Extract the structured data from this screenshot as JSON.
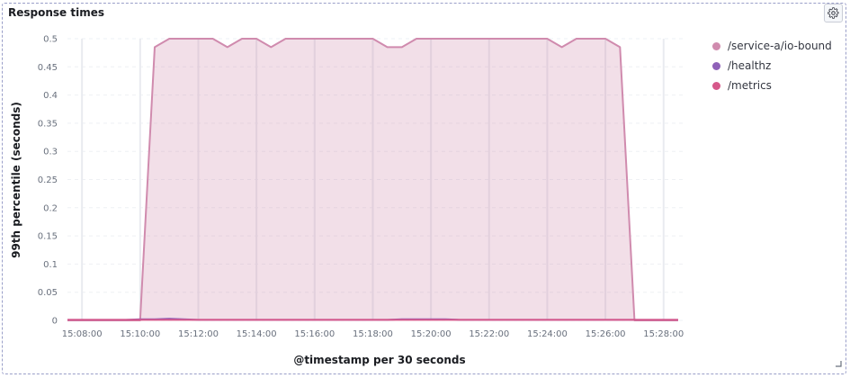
{
  "panel": {
    "title": "Response times"
  },
  "icons": {
    "settings": "gear-icon",
    "resize": "resize-handle-icon"
  },
  "legend": [
    {
      "label": "/service-a/io-bound",
      "color": "#d08bae"
    },
    {
      "label": "/healthz",
      "color": "#8f61b8"
    },
    {
      "label": "/metrics",
      "color": "#d6588a"
    }
  ],
  "chart_data": {
    "type": "area",
    "xlabel": "@timestamp per 30 seconds",
    "ylabel": "99th percentile (seconds)",
    "ylim": [
      0,
      0.5
    ],
    "y_ticks": [
      "0",
      "0.05",
      "0.1",
      "0.15",
      "0.2",
      "0.25",
      "0.3",
      "0.35",
      "0.4",
      "0.45",
      "0.5"
    ],
    "x_ticks": [
      "15:08:00",
      "15:10:00",
      "15:12:00",
      "15:14:00",
      "15:16:00",
      "15:18:00",
      "15:20:00",
      "15:22:00",
      "15:24:00",
      "15:26:00",
      "15:28:00"
    ],
    "grid": true,
    "legend_position": "right",
    "series": [
      {
        "name": "/service-a/io-bound",
        "color": "#d08bae",
        "x": [
          "15:07:30",
          "15:08:00",
          "15:08:30",
          "15:09:00",
          "15:09:30",
          "15:10:00",
          "15:10:30",
          "15:11:00",
          "15:11:30",
          "15:12:00",
          "15:12:30",
          "15:13:00",
          "15:13:30",
          "15:14:00",
          "15:14:30",
          "15:15:00",
          "15:15:30",
          "15:16:00",
          "15:16:30",
          "15:17:00",
          "15:17:30",
          "15:18:00",
          "15:18:30",
          "15:19:00",
          "15:19:30",
          "15:20:00",
          "15:20:30",
          "15:21:00",
          "15:21:30",
          "15:22:00",
          "15:22:30",
          "15:23:00",
          "15:23:30",
          "15:24:00",
          "15:24:30",
          "15:25:00",
          "15:25:30",
          "15:26:00",
          "15:26:30",
          "15:27:00",
          "15:27:30",
          "15:28:00",
          "15:28:30"
        ],
        "values": [
          0,
          0,
          0,
          0,
          0,
          0,
          0.485,
          0.5,
          0.5,
          0.5,
          0.5,
          0.485,
          0.5,
          0.5,
          0.485,
          0.5,
          0.5,
          0.5,
          0.5,
          0.5,
          0.5,
          0.5,
          0.485,
          0.485,
          0.5,
          0.5,
          0.5,
          0.5,
          0.5,
          0.5,
          0.5,
          0.5,
          0.5,
          0.5,
          0.485,
          0.5,
          0.5,
          0.5,
          0.485,
          0,
          0,
          0,
          0
        ]
      },
      {
        "name": "/healthz",
        "color": "#8f61b8",
        "x": [
          "15:07:30",
          "15:08:00",
          "15:08:30",
          "15:09:00",
          "15:09:30",
          "15:10:00",
          "15:10:30",
          "15:11:00",
          "15:11:30",
          "15:12:00",
          "15:12:30",
          "15:13:00",
          "15:13:30",
          "15:14:00",
          "15:14:30",
          "15:15:00",
          "15:15:30",
          "15:16:00",
          "15:16:30",
          "15:17:00",
          "15:17:30",
          "15:18:00",
          "15:18:30",
          "15:19:00",
          "15:19:30",
          "15:20:00",
          "15:20:30",
          "15:21:00",
          "15:21:30",
          "15:22:00",
          "15:22:30",
          "15:23:00",
          "15:23:30",
          "15:24:00",
          "15:24:30",
          "15:25:00",
          "15:25:30",
          "15:26:00",
          "15:26:30",
          "15:27:00",
          "15:27:30",
          "15:28:00",
          "15:28:30"
        ],
        "values": [
          0.001,
          0.001,
          0.001,
          0.001,
          0.001,
          0.002,
          0.002,
          0.003,
          0.002,
          0.001,
          0.001,
          0.001,
          0.001,
          0.001,
          0.001,
          0.001,
          0.001,
          0.001,
          0.001,
          0.001,
          0.001,
          0.001,
          0.001,
          0.002,
          0.002,
          0.002,
          0.002,
          0.001,
          0.001,
          0.001,
          0.001,
          0.001,
          0.001,
          0.001,
          0.001,
          0.001,
          0.001,
          0.001,
          0.001,
          0.001,
          0.001,
          0.001,
          0.001
        ]
      },
      {
        "name": "/metrics",
        "color": "#d6588a",
        "x": [
          "15:07:30",
          "15:08:00",
          "15:08:30",
          "15:09:00",
          "15:09:30",
          "15:10:00",
          "15:10:30",
          "15:11:00",
          "15:11:30",
          "15:12:00",
          "15:12:30",
          "15:13:00",
          "15:13:30",
          "15:14:00",
          "15:14:30",
          "15:15:00",
          "15:15:30",
          "15:16:00",
          "15:16:30",
          "15:17:00",
          "15:17:30",
          "15:18:00",
          "15:18:30",
          "15:19:00",
          "15:19:30",
          "15:20:00",
          "15:20:30",
          "15:21:00",
          "15:21:30",
          "15:22:00",
          "15:22:30",
          "15:23:00",
          "15:23:30",
          "15:24:00",
          "15:24:30",
          "15:25:00",
          "15:25:30",
          "15:26:00",
          "15:26:30",
          "15:27:00",
          "15:27:30",
          "15:28:00",
          "15:28:30"
        ],
        "values": [
          0.001,
          0.001,
          0.001,
          0.001,
          0.001,
          0.001,
          0.001,
          0.001,
          0.001,
          0.001,
          0.001,
          0.001,
          0.001,
          0.001,
          0.001,
          0.001,
          0.001,
          0.001,
          0.001,
          0.001,
          0.001,
          0.001,
          0.001,
          0.001,
          0.001,
          0.001,
          0.001,
          0.001,
          0.001,
          0.001,
          0.001,
          0.001,
          0.001,
          0.001,
          0.001,
          0.001,
          0.001,
          0.001,
          0.001,
          0.001,
          0.001,
          0.001,
          0.001
        ]
      }
    ]
  }
}
